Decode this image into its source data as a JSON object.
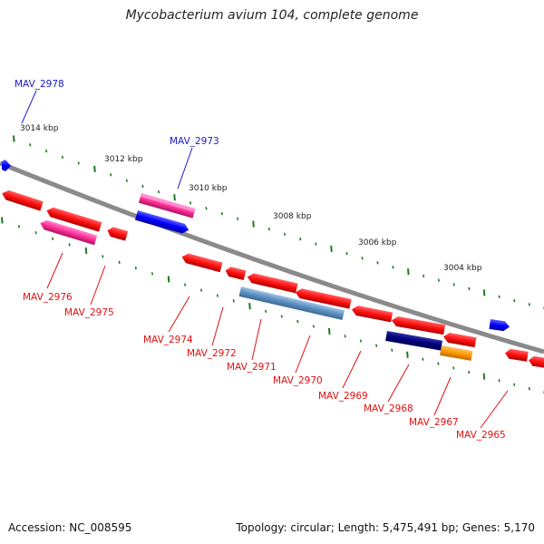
{
  "title": "Mycobacterium avium 104, complete genome",
  "footer": {
    "accession": "Accession: NC_008595",
    "stats": "Topology: circular; Length: 5,475,491 bp; Genes: 5,170"
  },
  "colors": {
    "backbone": "#8a8a8a",
    "tick": "#1f7a1f",
    "label_forward": "#1a1ac8",
    "label_reverse": "#e01010"
  },
  "scale_ticks": [
    "3014 kbp",
    "3012 kbp",
    "3010 kbp",
    "3008 kbp",
    "3006 kbp",
    "3004 kbp"
  ],
  "gene_labels": [
    {
      "text": "MAV_2978",
      "strand": "forward"
    },
    {
      "text": "MAV_2973",
      "strand": "forward"
    },
    {
      "text": "MAV_2976",
      "strand": "reverse"
    },
    {
      "text": "MAV_2975",
      "strand": "reverse"
    },
    {
      "text": "MAV_2974",
      "strand": "reverse"
    },
    {
      "text": "MAV_2972",
      "strand": "reverse"
    },
    {
      "text": "MAV_2971",
      "strand": "reverse"
    },
    {
      "text": "MAV_2970",
      "strand": "reverse"
    },
    {
      "text": "MAV_2969",
      "strand": "reverse"
    },
    {
      "text": "MAV_2968",
      "strand": "reverse"
    },
    {
      "text": "MAV_2967",
      "strand": "reverse"
    },
    {
      "text": "MAV_2965",
      "strand": "reverse"
    }
  ]
}
